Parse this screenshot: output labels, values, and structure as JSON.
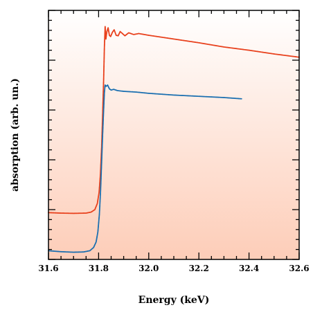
{
  "chart_data": {
    "type": "scatter",
    "xlabel": "Energy (keV)",
    "ylabel": "absorption (arb. un.)",
    "xlim": [
      31.6,
      32.6
    ],
    "ylim": [
      0,
      1
    ],
    "x_ticks": [
      "31.6",
      "31.8",
      "32.0",
      "32.2",
      "32.4",
      "32.6"
    ],
    "background_gradient": [
      "#ffffff",
      "#fdcdb8"
    ],
    "series": [
      {
        "color": "#e8401c",
        "x_max": 32.6,
        "points": [
          [
            31.6,
            0.188
          ],
          [
            31.65,
            0.186
          ],
          [
            31.7,
            0.185
          ],
          [
            31.75,
            0.186
          ],
          [
            31.77,
            0.19
          ],
          [
            31.785,
            0.2
          ],
          [
            31.795,
            0.225
          ],
          [
            31.802,
            0.27
          ],
          [
            31.807,
            0.34
          ],
          [
            31.812,
            0.45
          ],
          [
            31.816,
            0.58
          ],
          [
            31.82,
            0.72
          ],
          [
            31.823,
            0.85
          ],
          [
            31.826,
            0.935
          ],
          [
            31.829,
            0.885
          ],
          [
            31.833,
            0.915
          ],
          [
            31.838,
            0.93
          ],
          [
            31.843,
            0.9
          ],
          [
            31.848,
            0.895
          ],
          [
            31.855,
            0.912
          ],
          [
            31.862,
            0.922
          ],
          [
            31.87,
            0.9
          ],
          [
            31.878,
            0.898
          ],
          [
            31.886,
            0.915
          ],
          [
            31.895,
            0.907
          ],
          [
            31.905,
            0.898
          ],
          [
            31.92,
            0.91
          ],
          [
            31.94,
            0.903
          ],
          [
            31.96,
            0.907
          ],
          [
            32.0,
            0.9
          ],
          [
            32.1,
            0.885
          ],
          [
            32.2,
            0.87
          ],
          [
            32.3,
            0.853
          ],
          [
            32.4,
            0.84
          ],
          [
            32.5,
            0.825
          ],
          [
            32.6,
            0.812
          ]
        ]
      },
      {
        "color": "#1a6fb0",
        "x_max": 32.37,
        "points": [
          [
            31.6,
            0.035
          ],
          [
            31.65,
            0.031
          ],
          [
            31.7,
            0.029
          ],
          [
            31.74,
            0.03
          ],
          [
            31.765,
            0.035
          ],
          [
            31.78,
            0.048
          ],
          [
            31.79,
            0.07
          ],
          [
            31.797,
            0.11
          ],
          [
            31.803,
            0.18
          ],
          [
            31.808,
            0.28
          ],
          [
            31.812,
            0.39
          ],
          [
            31.816,
            0.5
          ],
          [
            31.82,
            0.6
          ],
          [
            31.823,
            0.67
          ],
          [
            31.826,
            0.7
          ],
          [
            31.83,
            0.695
          ],
          [
            31.836,
            0.7
          ],
          [
            31.843,
            0.685
          ],
          [
            31.85,
            0.68
          ],
          [
            31.86,
            0.683
          ],
          [
            31.875,
            0.678
          ],
          [
            31.9,
            0.675
          ],
          [
            31.95,
            0.672
          ],
          [
            32.0,
            0.667
          ],
          [
            32.1,
            0.66
          ],
          [
            32.2,
            0.655
          ],
          [
            32.3,
            0.65
          ],
          [
            32.37,
            0.645
          ]
        ]
      }
    ]
  }
}
